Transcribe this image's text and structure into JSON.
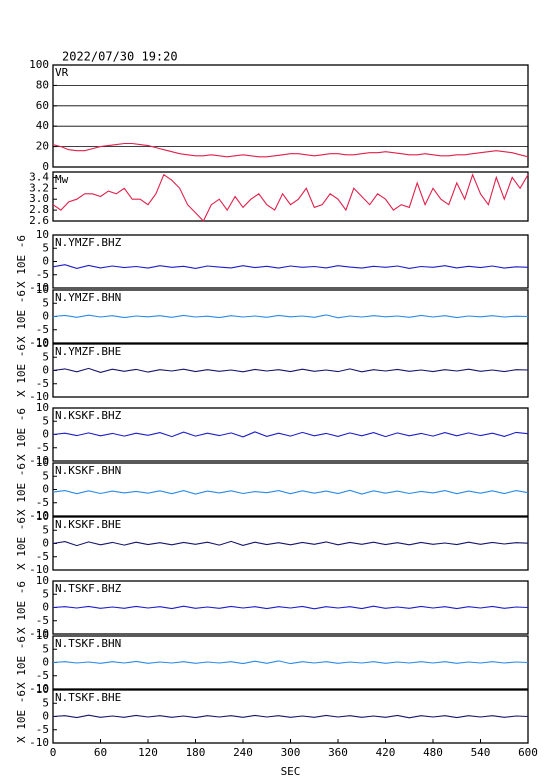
{
  "chart_data": [
    {
      "type": "line",
      "title": "2022/07/30 19:20",
      "label": "VR",
      "color": "#e0204a",
      "grid": true,
      "xlim": [
        0,
        600
      ],
      "ylim": [
        0,
        100
      ],
      "yticks": [
        0,
        20,
        40,
        60,
        80,
        100
      ],
      "x": [
        0,
        10,
        20,
        30,
        40,
        50,
        60,
        70,
        80,
        90,
        100,
        110,
        120,
        130,
        140,
        150,
        160,
        170,
        180,
        190,
        200,
        210,
        220,
        230,
        240,
        250,
        260,
        270,
        280,
        290,
        300,
        310,
        320,
        330,
        340,
        350,
        360,
        370,
        380,
        390,
        400,
        410,
        420,
        430,
        440,
        450,
        460,
        470,
        480,
        490,
        500,
        510,
        520,
        530,
        540,
        550,
        560,
        570,
        580,
        590,
        600
      ],
      "values": [
        22,
        20,
        17,
        16,
        16,
        18,
        20,
        21,
        22,
        23,
        23,
        22,
        21,
        19,
        17,
        15,
        13,
        12,
        11,
        11,
        12,
        11,
        10,
        11,
        12,
        11,
        10,
        10,
        11,
        12,
        13,
        13,
        12,
        11,
        12,
        13,
        13,
        12,
        12,
        13,
        14,
        14,
        15,
        14,
        13,
        12,
        12,
        13,
        12,
        11,
        11,
        12,
        12,
        13,
        14,
        15,
        16,
        15,
        14,
        12,
        10
      ]
    },
    {
      "type": "line",
      "label": "Mw",
      "color": "#e0204a",
      "grid": false,
      "xlim": [
        0,
        600
      ],
      "ylim": [
        2.6,
        3.5
      ],
      "yticks": [
        2.6,
        2.8,
        {
          "value": 3,
          "label": "3.0"
        },
        3.2,
        3.4
      ],
      "x": [
        0,
        10,
        20,
        30,
        40,
        50,
        60,
        70,
        80,
        90,
        100,
        110,
        120,
        130,
        140,
        150,
        160,
        170,
        180,
        190,
        200,
        210,
        220,
        230,
        240,
        250,
        260,
        270,
        280,
        290,
        300,
        310,
        320,
        330,
        340,
        350,
        360,
        370,
        380,
        390,
        400,
        410,
        420,
        430,
        440,
        450,
        460,
        470,
        480,
        490,
        500,
        510,
        520,
        530,
        540,
        550,
        560,
        570,
        580,
        590,
        600
      ],
      "values": [
        2.9,
        2.8,
        2.95,
        3.0,
        3.1,
        3.1,
        3.05,
        3.15,
        3.1,
        3.2,
        3.0,
        3.0,
        2.9,
        3.1,
        3.45,
        3.35,
        3.2,
        2.9,
        2.75,
        2.6,
        2.9,
        3.0,
        2.8,
        3.05,
        2.85,
        3.0,
        3.1,
        2.9,
        2.8,
        3.1,
        2.9,
        3.0,
        3.2,
        2.85,
        2.9,
        3.1,
        3.0,
        2.8,
        3.2,
        3.05,
        2.9,
        3.1,
        3.0,
        2.8,
        2.9,
        2.85,
        3.3,
        2.9,
        3.2,
        3.0,
        2.9,
        3.3,
        3.0,
        3.45,
        3.1,
        2.9,
        3.4,
        3.0,
        3.4,
        3.2,
        3.45
      ]
    },
    {
      "type": "line",
      "label": "N.YMZF.BHZ",
      "ylabel": "X 10E -6",
      "color": "#1c1cc8",
      "xlim": [
        0,
        600
      ],
      "ylim": [
        -10,
        10
      ],
      "yticks": [
        -10,
        -5,
        0,
        5,
        10
      ],
      "x": [
        0,
        15,
        30,
        45,
        60,
        75,
        90,
        105,
        120,
        135,
        150,
        165,
        180,
        195,
        210,
        225,
        240,
        255,
        270,
        285,
        300,
        315,
        330,
        345,
        360,
        375,
        390,
        405,
        420,
        435,
        450,
        465,
        480,
        495,
        510,
        525,
        540,
        555,
        570,
        585,
        600
      ],
      "values": [
        -2,
        -1.2,
        -2.6,
        -1.5,
        -2.4,
        -1.7,
        -2.3,
        -1.9,
        -2.5,
        -1.6,
        -2.2,
        -1.8,
        -2.6,
        -1.7,
        -2.1,
        -2.4,
        -1.6,
        -2.3,
        -1.8,
        -2.5,
        -1.7,
        -2.2,
        -1.9,
        -2.4,
        -1.6,
        -2.1,
        -2.5,
        -1.8,
        -2.2,
        -1.7,
        -2.6,
        -1.9,
        -2.2,
        -1.6,
        -2.4,
        -1.8,
        -2.3,
        -1.7,
        -2.5,
        -2.0,
        -2.2
      ]
    },
    {
      "type": "line",
      "label": "N.YMZF.BHN",
      "ylabel": "X 10E -6",
      "color": "#2a8ae8",
      "xlim": [
        0,
        600
      ],
      "ylim": [
        -10,
        10
      ],
      "yticks": [
        -10,
        -5,
        0,
        5,
        10
      ],
      "x": [
        0,
        15,
        30,
        45,
        60,
        75,
        90,
        105,
        120,
        135,
        150,
        165,
        180,
        195,
        210,
        225,
        240,
        255,
        270,
        285,
        300,
        315,
        330,
        345,
        360,
        375,
        390,
        405,
        420,
        435,
        450,
        465,
        480,
        495,
        510,
        525,
        540,
        555,
        570,
        585,
        600
      ],
      "values": [
        0,
        0.4,
        -0.3,
        0.5,
        -0.2,
        0.3,
        -0.4,
        0.2,
        -0.1,
        0.3,
        -0.3,
        0.4,
        -0.2,
        0.1,
        -0.4,
        0.3,
        -0.2,
        0.2,
        -0.3,
        0.4,
        -0.1,
        0.2,
        -0.3,
        0.6,
        -0.5,
        0.2,
        -0.2,
        0.3,
        -0.1,
        0.2,
        -0.3,
        0.4,
        -0.2,
        0.3,
        -0.4,
        0.2,
        -0.1,
        0.3,
        -0.2,
        0.1,
        0
      ]
    },
    {
      "type": "line",
      "label": "N.YMZF.BHE",
      "ylabel": "X 10E -6",
      "color": "#14146a",
      "xlim": [
        0,
        600
      ],
      "ylim": [
        -10,
        10
      ],
      "yticks": [
        -10,
        -5,
        0,
        5,
        10
      ],
      "x": [
        0,
        15,
        30,
        45,
        60,
        75,
        90,
        105,
        120,
        135,
        150,
        165,
        180,
        195,
        210,
        225,
        240,
        255,
        270,
        285,
        300,
        315,
        330,
        345,
        360,
        375,
        390,
        405,
        420,
        435,
        450,
        465,
        480,
        495,
        510,
        525,
        540,
        555,
        570,
        585,
        600
      ],
      "values": [
        0,
        0.6,
        -0.5,
        0.8,
        -0.7,
        0.5,
        -0.3,
        0.4,
        -0.6,
        0.3,
        -0.2,
        0.5,
        -0.4,
        0.3,
        -0.3,
        0.2,
        -0.5,
        0.4,
        -0.2,
        0.3,
        -0.4,
        0.5,
        -0.3,
        0.2,
        -0.4,
        0.6,
        -0.5,
        0.3,
        -0.2,
        0.4,
        -0.3,
        0.2,
        -0.4,
        0.3,
        -0.2,
        0.5,
        -0.3,
        0.2,
        -0.4,
        0.3,
        0.2
      ]
    },
    {
      "type": "line",
      "label": "N.KSKF.BHZ",
      "ylabel": "X 10E -6",
      "color": "#1c1cc8",
      "xlim": [
        0,
        600
      ],
      "ylim": [
        -10,
        10
      ],
      "yticks": [
        -10,
        -5,
        0,
        5,
        10
      ],
      "x": [
        0,
        15,
        30,
        45,
        60,
        75,
        90,
        105,
        120,
        135,
        150,
        165,
        180,
        195,
        210,
        225,
        240,
        255,
        270,
        285,
        300,
        315,
        330,
        345,
        360,
        375,
        390,
        405,
        420,
        435,
        450,
        465,
        480,
        495,
        510,
        525,
        540,
        555,
        570,
        585,
        600
      ],
      "values": [
        0,
        0.5,
        -0.4,
        0.6,
        -0.5,
        0.4,
        -0.6,
        0.5,
        -0.3,
        0.7,
        -0.8,
        0.9,
        -0.6,
        0.5,
        -0.4,
        0.6,
        -0.9,
        1.0,
        -0.7,
        0.5,
        -0.6,
        0.8,
        -0.5,
        0.4,
        -0.7,
        0.6,
        -0.5,
        0.7,
        -0.8,
        0.6,
        -0.5,
        0.4,
        -0.6,
        0.7,
        -0.5,
        0.6,
        -0.4,
        0.5,
        -0.7,
        0.8,
        0.3
      ]
    },
    {
      "type": "line",
      "label": "N.KSKF.BHN",
      "ylabel": "X 10E -6",
      "color": "#2a8ae8",
      "xlim": [
        0,
        600
      ],
      "ylim": [
        -10,
        10
      ],
      "yticks": [
        -10,
        -5,
        0,
        5,
        10
      ],
      "x": [
        0,
        15,
        30,
        45,
        60,
        75,
        90,
        105,
        120,
        135,
        150,
        165,
        180,
        195,
        210,
        225,
        240,
        255,
        270,
        285,
        300,
        315,
        330,
        345,
        360,
        375,
        390,
        405,
        420,
        435,
        450,
        465,
        480,
        495,
        510,
        525,
        540,
        555,
        570,
        585,
        600
      ],
      "values": [
        -1,
        -0.4,
        -1.6,
        -0.5,
        -1.5,
        -0.6,
        -1.3,
        -0.7,
        -1.4,
        -0.5,
        -1.6,
        -0.4,
        -1.7,
        -0.6,
        -1.3,
        -0.5,
        -1.5,
        -0.8,
        -1.2,
        -0.4,
        -1.6,
        -0.5,
        -1.4,
        -0.6,
        -1.5,
        -0.3,
        -1.7,
        -0.5,
        -1.4,
        -0.6,
        -1.5,
        -0.7,
        -1.3,
        -0.4,
        -1.6,
        -0.6,
        -1.4,
        -0.5,
        -1.5,
        -0.4,
        -1.2
      ]
    },
    {
      "type": "line",
      "label": "N.KSKF.BHE",
      "ylabel": "X 10E -6",
      "color": "#14146a",
      "xlim": [
        0,
        600
      ],
      "ylim": [
        -10,
        10
      ],
      "yticks": [
        -10,
        -5,
        0,
        5,
        10
      ],
      "x": [
        0,
        15,
        30,
        45,
        60,
        75,
        90,
        105,
        120,
        135,
        150,
        165,
        180,
        195,
        210,
        225,
        240,
        255,
        270,
        285,
        300,
        315,
        330,
        345,
        360,
        375,
        390,
        405,
        420,
        435,
        450,
        465,
        480,
        495,
        510,
        525,
        540,
        555,
        570,
        585,
        600
      ],
      "values": [
        0,
        0.7,
        -0.8,
        0.6,
        -0.5,
        0.4,
        -0.6,
        0.5,
        -0.4,
        0.3,
        -0.5,
        0.4,
        -0.3,
        0.5,
        -0.6,
        0.8,
        -0.7,
        0.5,
        -0.4,
        0.3,
        -0.5,
        0.4,
        -0.3,
        0.6,
        -0.5,
        0.4,
        -0.3,
        0.5,
        -0.4,
        0.3,
        -0.5,
        0.4,
        -0.3,
        0.2,
        -0.4,
        0.5,
        -0.3,
        0.4,
        -0.2,
        0.3,
        0.1
      ]
    },
    {
      "type": "line",
      "label": "N.TSKF.BHZ",
      "ylabel": "X 10E -6",
      "color": "#1c1cc8",
      "xlim": [
        0,
        600
      ],
      "ylim": [
        -10,
        10
      ],
      "yticks": [
        -10,
        -5,
        0,
        5,
        10
      ],
      "x": [
        0,
        15,
        30,
        45,
        60,
        75,
        90,
        105,
        120,
        135,
        150,
        165,
        180,
        195,
        210,
        225,
        240,
        255,
        270,
        285,
        300,
        315,
        330,
        345,
        360,
        375,
        390,
        405,
        420,
        435,
        450,
        465,
        480,
        495,
        510,
        525,
        540,
        555,
        570,
        585,
        600
      ],
      "values": [
        0,
        0.3,
        -0.2,
        0.4,
        -0.3,
        0.2,
        -0.3,
        0.4,
        -0.2,
        0.3,
        -0.4,
        0.5,
        -0.3,
        0.2,
        -0.3,
        0.4,
        -0.2,
        0.3,
        -0.4,
        0.3,
        -0.2,
        0.4,
        -0.5,
        0.3,
        -0.2,
        0.3,
        -0.4,
        0.5,
        -0.3,
        0.2,
        -0.3,
        0.4,
        -0.2,
        0.3,
        -0.4,
        0.3,
        -0.2,
        0.4,
        -0.3,
        0.2,
        0
      ]
    },
    {
      "type": "line",
      "label": "N.TSKF.BHN",
      "ylabel": "X 10E -6",
      "color": "#2a8ae8",
      "xlim": [
        0,
        600
      ],
      "ylim": [
        -10,
        10
      ],
      "yticks": [
        -10,
        -5,
        0,
        5,
        10
      ],
      "x": [
        0,
        15,
        30,
        45,
        60,
        75,
        90,
        105,
        120,
        135,
        150,
        165,
        180,
        195,
        210,
        225,
        240,
        255,
        270,
        285,
        300,
        315,
        330,
        345,
        360,
        375,
        390,
        405,
        420,
        435,
        450,
        465,
        480,
        495,
        510,
        525,
        540,
        555,
        570,
        585,
        600
      ],
      "values": [
        0,
        0.3,
        -0.2,
        0.2,
        -0.3,
        0.3,
        -0.2,
        0.4,
        -0.3,
        0.2,
        -0.2,
        0.3,
        -0.3,
        0.2,
        -0.2,
        0.3,
        -0.4,
        0.5,
        -0.3,
        0.6,
        -0.4,
        0.3,
        -0.2,
        0.3,
        -0.3,
        0.2,
        -0.2,
        0.3,
        -0.3,
        0.2,
        -0.2,
        0.3,
        -0.2,
        0.3,
        -0.3,
        0.2,
        -0.2,
        0.3,
        -0.2,
        0.2,
        0
      ]
    },
    {
      "type": "line",
      "label": "N.TSKF.BHE",
      "ylabel": "X 10E -6",
      "xlabel": "SEC",
      "color": "#14146a",
      "xlim": [
        0,
        600
      ],
      "xticks": [
        0,
        60,
        120,
        180,
        240,
        300,
        360,
        420,
        480,
        540,
        600
      ],
      "ylim": [
        -10,
        10
      ],
      "yticks": [
        -10,
        -5,
        0,
        5,
        10
      ],
      "x": [
        0,
        15,
        30,
        45,
        60,
        75,
        90,
        105,
        120,
        135,
        150,
        165,
        180,
        195,
        210,
        225,
        240,
        255,
        270,
        285,
        300,
        315,
        330,
        345,
        360,
        375,
        390,
        405,
        420,
        435,
        450,
        465,
        480,
        495,
        510,
        525,
        540,
        555,
        570,
        585,
        600
      ],
      "values": [
        0,
        0.3,
        -0.4,
        0.5,
        -0.3,
        0.2,
        -0.3,
        0.4,
        -0.2,
        0.3,
        -0.3,
        0.2,
        -0.4,
        0.3,
        -0.2,
        0.3,
        -0.3,
        0.4,
        -0.2,
        0.3,
        -0.3,
        0.2,
        -0.3,
        0.4,
        -0.2,
        0.3,
        -0.3,
        0.2,
        -0.3,
        0.4,
        -0.5,
        0.3,
        -0.2,
        0.3,
        -0.4,
        0.3,
        -0.2,
        0.3,
        -0.3,
        0.2,
        0
      ]
    }
  ]
}
